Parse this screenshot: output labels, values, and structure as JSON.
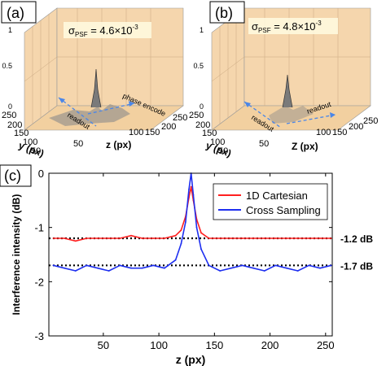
{
  "panels": {
    "a": {
      "label": "(a)",
      "sigma": "σ",
      "sigma_sub": "PSF",
      "sigma_val": " = 4.6×10",
      "sigma_exp": "-3",
      "zticks": [
        "0",
        "0.5",
        "1"
      ],
      "yticks": [
        "250",
        "200",
        "150",
        "100",
        "50"
      ],
      "xticks": [
        "50",
        "100",
        "150",
        "200",
        "250"
      ],
      "ylabel": "y (px)",
      "xlabel": "z (px)",
      "arrow1": "readout",
      "arrow2": "phase encode"
    },
    "b": {
      "label": "(b)",
      "sigma": "σ",
      "sigma_sub": "PSF",
      "sigma_val": " = 4.8×10",
      "sigma_exp": "-3",
      "zticks": [
        "0",
        "0.5",
        "1"
      ],
      "yticks": [
        "250",
        "200",
        "150",
        "100",
        "50"
      ],
      "xticks": [
        "50",
        "100",
        "150",
        "200",
        "250"
      ],
      "ylabel": "y (px)",
      "xlabel": "Z (px)",
      "arrow1": "readout",
      "arrow2": "readout"
    },
    "c": {
      "label": "(c)"
    }
  },
  "chart_data": {
    "type": "line",
    "xlabel": "z (px)",
    "ylabel": "Interference intensity (dB)",
    "xlim": [
      1,
      256
    ],
    "ylim": [
      -3,
      0
    ],
    "xticks": [
      50,
      100,
      150,
      200,
      250
    ],
    "yticks": [
      -3,
      -2,
      -1,
      0
    ],
    "legend_position": "top-right",
    "series": [
      {
        "name": "1D Cartesian",
        "color": "#ff2020",
        "x": [
          5,
          15,
          25,
          35,
          45,
          55,
          65,
          75,
          85,
          95,
          105,
          115,
          120,
          124,
          127,
          129,
          131,
          134,
          138,
          145,
          155,
          165,
          175,
          185,
          195,
          205,
          215,
          225,
          235,
          245,
          255
        ],
        "y": [
          -1.2,
          -1.2,
          -1.25,
          -1.2,
          -1.2,
          -1.2,
          -1.2,
          -1.15,
          -1.2,
          -1.2,
          -1.2,
          -1.15,
          -1.05,
          -0.8,
          -0.45,
          -0.25,
          -0.5,
          -0.85,
          -1.1,
          -1.2,
          -1.2,
          -1.2,
          -1.2,
          -1.2,
          -1.2,
          -1.2,
          -1.2,
          -1.2,
          -1.2,
          -1.2,
          -1.2
        ]
      },
      {
        "name": "Cross Sampling",
        "color": "#1e2ff0",
        "x": [
          5,
          15,
          25,
          35,
          45,
          55,
          65,
          75,
          85,
          95,
          105,
          115,
          120,
          124,
          127,
          129,
          131,
          134,
          138,
          145,
          155,
          165,
          175,
          185,
          195,
          205,
          215,
          225,
          235,
          245,
          255
        ],
        "y": [
          -1.7,
          -1.75,
          -1.8,
          -1.7,
          -1.75,
          -1.8,
          -1.7,
          -1.75,
          -1.75,
          -1.7,
          -1.75,
          -1.6,
          -1.3,
          -0.9,
          -0.3,
          0.0,
          -0.4,
          -1.0,
          -1.4,
          -1.7,
          -1.8,
          -1.75,
          -1.7,
          -1.75,
          -1.8,
          -1.7,
          -1.75,
          -1.8,
          -1.7,
          -1.75,
          -1.7
        ]
      }
    ],
    "reference_lines": [
      {
        "y": -1.2,
        "label": "-1.2 dB"
      },
      {
        "y": -1.7,
        "label": "-1.7 dB"
      }
    ]
  }
}
